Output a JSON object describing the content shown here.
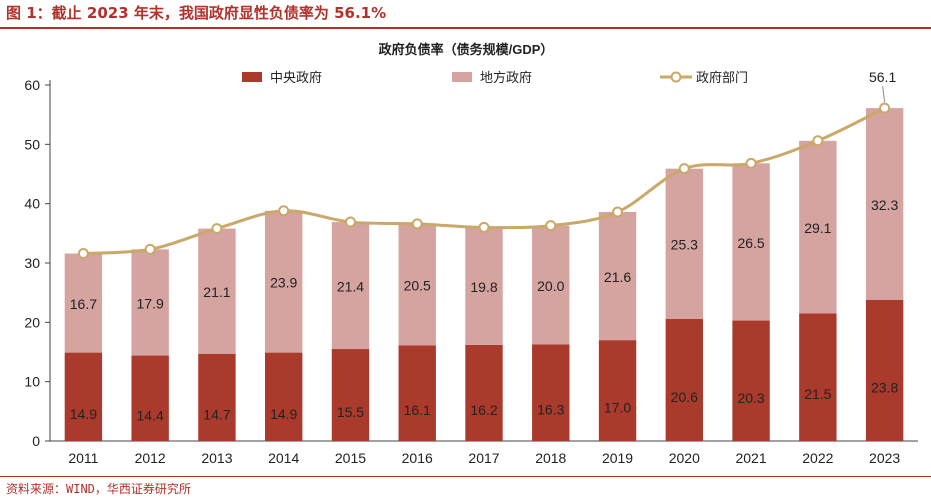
{
  "figure_title": "图 1：截止 2023 年末，我国政府显性负债率为 56.1%",
  "source": "资料来源：WIND，华西证券研究所",
  "chart_data": {
    "type": "bar",
    "stacked": true,
    "title": "政府负债率（债务规模/GDP）",
    "categories": [
      "2011",
      "2012",
      "2013",
      "2014",
      "2015",
      "2016",
      "2017",
      "2018",
      "2019",
      "2020",
      "2021",
      "2022",
      "2023"
    ],
    "series": [
      {
        "name": "中央政府",
        "kind": "bar",
        "color": "#a93a2c",
        "values": [
          14.9,
          14.4,
          14.7,
          14.9,
          15.5,
          16.1,
          16.2,
          16.3,
          17.0,
          20.6,
          20.3,
          21.5,
          23.8
        ],
        "labels": [
          "14.9",
          "14.4",
          "14.7",
          "14.9",
          "15.5",
          "16.1",
          "16.2",
          "16.3",
          "17.0",
          "20.6",
          "20.3",
          "21.5",
          "23.8"
        ]
      },
      {
        "name": "地方政府",
        "kind": "bar",
        "color": "#d5a3a0",
        "values": [
          16.7,
          17.9,
          21.1,
          23.9,
          21.4,
          20.5,
          19.8,
          20.0,
          21.6,
          25.3,
          26.5,
          29.1,
          32.3
        ],
        "labels": [
          "16.7",
          "17.9",
          "21.1",
          "23.9",
          "21.4",
          "20.5",
          "19.8",
          "20.0",
          "21.6",
          "25.3",
          "26.5",
          "29.1",
          "32.3"
        ]
      },
      {
        "name": "政府部门",
        "kind": "line",
        "color": "#c9a86a",
        "values": [
          31.6,
          32.3,
          35.8,
          38.8,
          36.9,
          36.6,
          36.0,
          36.3,
          38.6,
          45.9,
          46.8,
          50.6,
          56.1
        ]
      }
    ],
    "annotations": [
      {
        "category": "2023",
        "text": "56.1"
      }
    ],
    "ylim": [
      0,
      60
    ],
    "yticks": [
      "0",
      "10",
      "20",
      "30",
      "40",
      "50",
      "60"
    ],
    "grid": false,
    "legend_position": "top"
  }
}
